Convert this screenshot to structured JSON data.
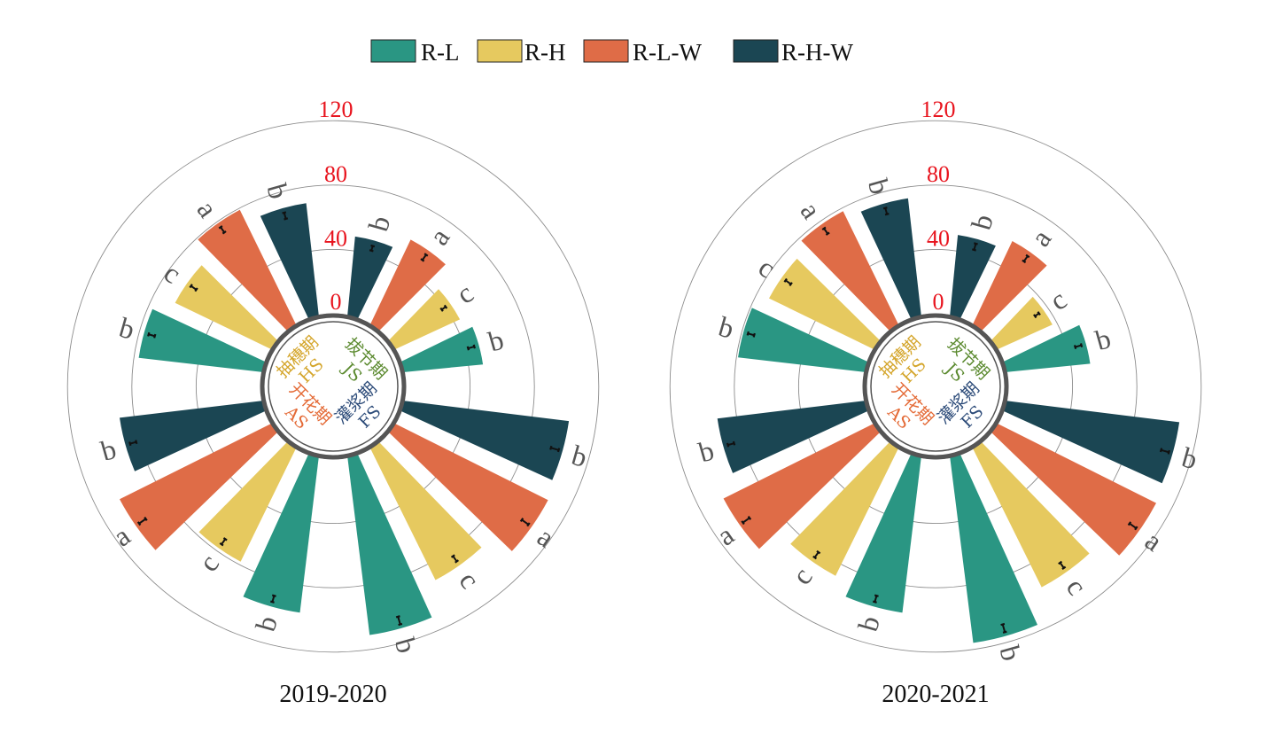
{
  "colors": {
    "R-L": "#2a9683",
    "R-H": "#e6c95f",
    "R-L-W": "#df6c47",
    "R-H-W": "#1b4653",
    "grid": "#8c8c8c",
    "hub": "#555555",
    "tick": "#e8141e",
    "sig": "#555555",
    "stage_JS": "#5b8a2f",
    "stage_HS": "#d4a52a",
    "stage_AS": "#e46a36",
    "stage_FS": "#2b4a78"
  },
  "legend": {
    "items": [
      {
        "key": "R-L",
        "label": "R-L"
      },
      {
        "key": "R-H",
        "label": "R-H"
      },
      {
        "key": "R-L-W",
        "label": "R-L-W"
      },
      {
        "key": "R-H-W",
        "label": "R-H-W"
      }
    ]
  },
  "stages": [
    {
      "key": "JS",
      "cn": "拔节期",
      "en": "JS"
    },
    {
      "key": "HS",
      "cn": "抽穗期",
      "en": "HS"
    },
    {
      "key": "AS",
      "cn": "开花期",
      "en": "AS"
    },
    {
      "key": "FS",
      "cn": "灌浆期",
      "en": "FS"
    }
  ],
  "chart_data": [
    {
      "type": "bar",
      "polar": true,
      "title": "2019-2020",
      "radial_ticks": [
        "0",
        "40",
        "80",
        "120"
      ],
      "rlim": [
        0,
        120
      ],
      "series_order": [
        "R-L",
        "R-H",
        "R-L-W",
        "R-H-W"
      ],
      "groups": [
        {
          "stage": "JS",
          "values": {
            "R-L": 49,
            "R-H": 44,
            "R-L-W": 58,
            "R-H-W": 49
          },
          "errors": {
            "R-L": 2,
            "R-H": 1.5,
            "R-L-W": 2,
            "R-H-W": 1.5
          },
          "letters": {
            "R-L": "b",
            "R-H": "c",
            "R-L-W": "a",
            "R-H-W": "b"
          }
        },
        {
          "stage": "HS",
          "values": {
            "R-L": 77,
            "R-H": 66,
            "R-L-W": 79,
            "R-H-W": 70
          },
          "errors": {
            "R-L": 2,
            "R-H": 2,
            "R-L-W": 2,
            "R-H-W": 2
          },
          "letters": {
            "R-L": "b",
            "R-H": "c",
            "R-L-W": "a",
            "R-H-W": "b"
          }
        },
        {
          "stage": "AS",
          "values": {
            "R-L": 97,
            "R-H": 78,
            "R-L-W": 105,
            "R-H-W": 89
          },
          "errors": {
            "R-L": 2,
            "R-H": 2,
            "R-L-W": 2.5,
            "R-H-W": 2
          },
          "letters": {
            "R-L": "b",
            "R-H": "c",
            "R-L-W": "a",
            "R-H-W": "b"
          }
        },
        {
          "stage": "FS",
          "values": {
            "R-L": 111,
            "R-H": 91,
            "R-L-W": 106,
            "R-H-W": 103
          },
          "errors": {
            "R-L": 2.5,
            "R-H": 2,
            "R-L-W": 2.5,
            "R-H-W": 2.5
          },
          "letters": {
            "R-L": "b",
            "R-H": "c",
            "R-L-W": "a",
            "R-H-W": "b"
          }
        }
      ]
    },
    {
      "type": "bar",
      "polar": true,
      "title": "2020-2021",
      "radial_ticks": [
        "0",
        "40",
        "80",
        "120"
      ],
      "rlim": [
        0,
        120
      ],
      "series_order": [
        "R-L",
        "R-H",
        "R-L-W",
        "R-H-W"
      ],
      "groups": [
        {
          "stage": "JS",
          "values": {
            "R-L": 52,
            "R-H": 37,
            "R-L-W": 57,
            "R-H-W": 50
          },
          "errors": {
            "R-L": 2,
            "R-H": 1.5,
            "R-L-W": 2,
            "R-H-W": 2
          },
          "letters": {
            "R-L": "b",
            "R-H": "c",
            "R-L-W": "a",
            "R-H-W": "b"
          }
        },
        {
          "stage": "HS",
          "values": {
            "R-L": 79,
            "R-H": 72,
            "R-L-W": 78,
            "R-H-W": 73
          },
          "errors": {
            "R-L": 2,
            "R-H": 2,
            "R-L-W": 2,
            "R-H-W": 2
          },
          "letters": {
            "R-L": "b",
            "R-H": "c",
            "R-L-W": "a",
            "R-H-W": "b"
          }
        },
        {
          "stage": "AS",
          "values": {
            "R-L": 97,
            "R-H": 88,
            "R-L-W": 104,
            "R-H-W": 92
          },
          "errors": {
            "R-L": 2,
            "R-H": 2,
            "R-L-W": 2.5,
            "R-H-W": 2
          },
          "letters": {
            "R-L": "b",
            "R-H": "c",
            "R-L-W": "a",
            "R-H-W": "b"
          }
        },
        {
          "stage": "FS",
          "values": {
            "R-L": 116,
            "R-H": 96,
            "R-L-W": 110,
            "R-H-W": 108
          },
          "errors": {
            "R-L": 2.5,
            "R-H": 2,
            "R-L-W": 2.5,
            "R-H-W": 2.5
          },
          "letters": {
            "R-L": "b",
            "R-H": "c",
            "R-L-W": "a",
            "R-H-W": "b"
          }
        }
      ]
    }
  ]
}
